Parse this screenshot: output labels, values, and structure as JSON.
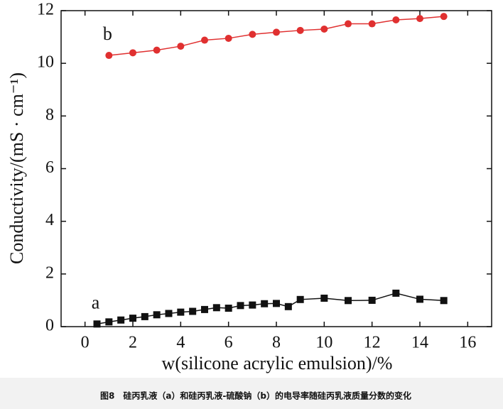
{
  "chart_data": {
    "type": "line",
    "x_label": "w(silicone acrylic emulsion)/%",
    "y_label": "Conductivity/(mS · cm⁻¹)",
    "caption": "图8　硅丙乳液（a）和硅丙乳液-硫酸钠（b）的电导率随硅丙乳液质量分数的变化",
    "xlim": [
      -1,
      17
    ],
    "xticks": [
      0,
      2,
      4,
      6,
      8,
      10,
      12,
      14,
      16
    ],
    "ylim": [
      0,
      12
    ],
    "yticks": [
      0,
      2,
      4,
      6,
      8,
      10,
      12
    ],
    "series": [
      {
        "name": "a",
        "color": "#111111",
        "marker": "square",
        "x": [
          0.5,
          1,
          1.5,
          2,
          2.5,
          3,
          3.5,
          4,
          4.5,
          5,
          5.5,
          6,
          6.5,
          7,
          7.5,
          8,
          8.5,
          9,
          10,
          11,
          12,
          13,
          14,
          15
        ],
        "values": [
          0.1,
          0.18,
          0.25,
          0.32,
          0.38,
          0.45,
          0.5,
          0.55,
          0.58,
          0.65,
          0.72,
          0.7,
          0.8,
          0.82,
          0.87,
          0.88,
          0.76,
          1.03,
          1.08,
          0.99,
          1.0,
          1.27,
          1.04,
          0.99
        ]
      },
      {
        "name": "b",
        "color": "#e03030",
        "marker": "circle",
        "x": [
          1,
          2,
          3,
          4,
          5,
          6,
          7,
          8,
          9,
          10,
          11,
          12,
          13,
          14,
          15
        ],
        "values": [
          10.3,
          10.4,
          10.5,
          10.65,
          10.88,
          10.95,
          11.1,
          11.18,
          11.25,
          11.3,
          11.5,
          11.5,
          11.65,
          11.7,
          11.78
        ]
      }
    ]
  }
}
